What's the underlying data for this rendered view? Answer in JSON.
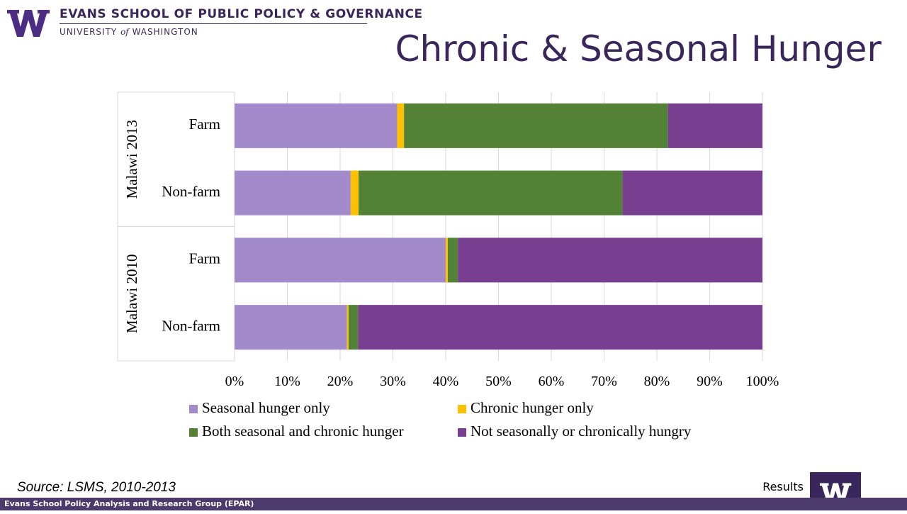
{
  "header": {
    "school_name": "EVANS SCHOOL OF PUBLIC POLICY & GOVERNANCE",
    "univ_prefix": "UNIVERSITY",
    "univ_of": "of",
    "univ_suffix": "WASHINGTON",
    "logo_icon": "uw-w-logo-icon"
  },
  "slide": {
    "title": "Chronic & Seasonal Hunger",
    "source": "Source: LSMS, 2010-2013",
    "section_label": "Results",
    "footer": "Evans School Policy Analysis and Research Group (EPAR)"
  },
  "colors": {
    "brand_purple": "#39275b",
    "footer_purple": "#4b3a6b"
  },
  "chart_data": {
    "type": "bar",
    "orientation": "horizontal",
    "stacked": "percent",
    "title": "",
    "xlabel": "",
    "ylabel": "",
    "xlim": [
      0,
      100
    ],
    "x_ticks": [
      "0%",
      "10%",
      "20%",
      "30%",
      "40%",
      "50%",
      "60%",
      "70%",
      "80%",
      "90%",
      "100%"
    ],
    "groups": [
      {
        "label": "Malawi 2013",
        "categories": [
          "Farm",
          "Non-farm"
        ]
      },
      {
        "label": "Malawi 2010",
        "categories": [
          "Farm",
          "Non-farm"
        ]
      }
    ],
    "categories": [
      "Malawi 2013 Farm",
      "Malawi 2013 Non-farm",
      "Malawi 2010 Farm",
      "Malawi 2010 Non-farm"
    ],
    "series": [
      {
        "name": "Seasonal hunger only",
        "color": "#a38bcb",
        "values": [
          30.8,
          22.0,
          40.0,
          21.3
        ]
      },
      {
        "name": "Chronic hunger only",
        "color": "#ffc000",
        "values": [
          1.3,
          1.5,
          0.4,
          0.3
        ]
      },
      {
        "name": "Both seasonal and chronic hunger",
        "color": "#538135",
        "values": [
          50.0,
          50.0,
          1.9,
          1.8
        ]
      },
      {
        "name": "Not seasonally or chronically hungry",
        "color": "#783f91",
        "values": [
          17.9,
          26.5,
          57.7,
          76.6
        ]
      }
    ],
    "grid": true,
    "legend_position": "bottom"
  }
}
